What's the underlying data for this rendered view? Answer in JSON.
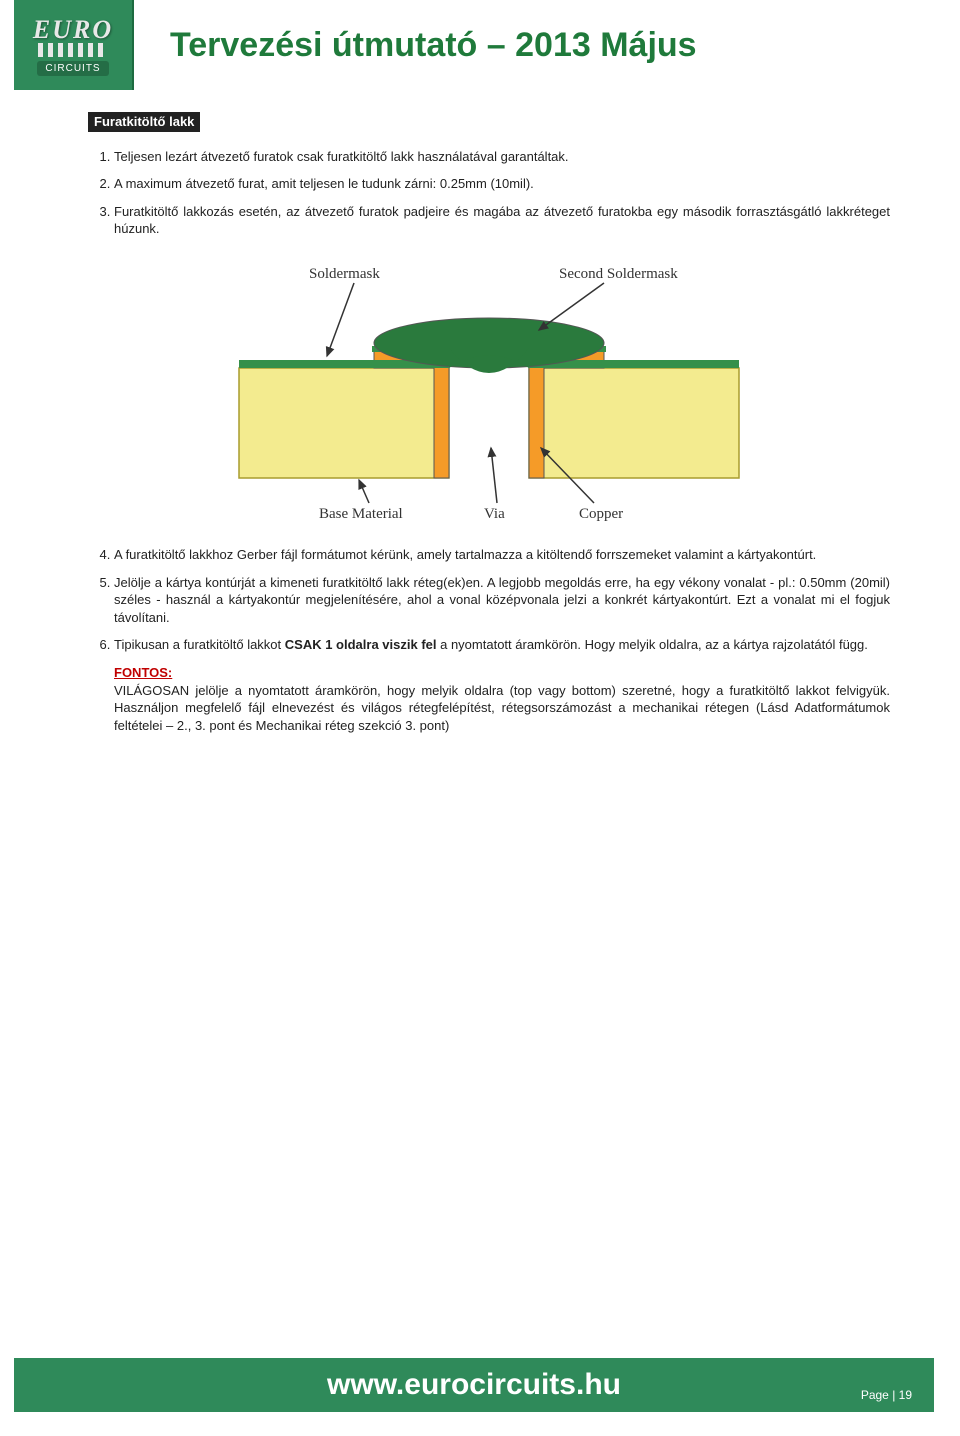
{
  "header": {
    "logo_top": "EURO",
    "logo_bottom": "CIRCUITS",
    "title": "Tervezési útmutató – 2013 Május"
  },
  "section": {
    "heading": "Furatkitöltő lakk",
    "items": [
      "Teljesen lezárt átvezető furatok csak furatkitöltő lakk használatával garantáltak.",
      "A maximum átvezető furat, amit teljesen le tudunk zárni: 0.25mm (10mil).",
      "Furatkitöltő lakkozás esetén, az átvezető furatok padjeire és magába az átvezető furatokba egy második forrasztásgátló lakkréteget húzunk."
    ],
    "items2": [
      "A furatkitöltő lakkhoz Gerber fájl formátumot kérünk, amely tartalmazza a kitöltendő forrszemeket valamint a kártyakontúrt.",
      "Jelölje a kártya kontúrját a kimeneti furatkitöltő lakk réteg(ek)en.\nA legjobb megoldás erre, ha egy vékony vonalat - pl.: 0.50mm (20mil) széles - használ a kártyakontúr megjelenítésére, ahol a vonal középvonala jelzi a konkrét kártyakontúrt. Ezt a vonalat mi el fogjuk távolítani.",
      "Tipikusan a furatkitöltő lakkot CSAK 1 oldalra viszik fel a nyomtatott áramkörön. Hogy melyik oldalra, az a kártya rajzolatától függ."
    ],
    "fontos_label": "FONTOS:",
    "fontos_text": "VILÁGOSAN jelölje a nyomtatott áramkörön, hogy melyik oldalra (top vagy bottom) szeretné, hogy a furatkitöltő lakkot felvigyük. Használjon megfelelő fájl elnevezést és világos rétegfelépítést, rétegsorszámozást a mechanikai rétegen (Lásd Adatformátumok feltételei – 2., 3. pont és Mechanikai réteg szekció 3. pont)"
  },
  "diagram": {
    "labels": {
      "soldermask": "Soldermask",
      "second_soldermask": "Second Soldermask",
      "base_material": "Base Material",
      "via": "Via",
      "copper": "Copper"
    },
    "colors": {
      "base": "#f3eb8f",
      "base_stroke": "#a89c2e",
      "copper": "#f59b28",
      "soldermask": "#35904a",
      "second_mask": "#2a7a3d",
      "arrow": "#333333",
      "text": "#333333",
      "outline": "#555555"
    }
  },
  "footer": {
    "url": "www.eurocircuits.hu",
    "page_prefix": "Page | ",
    "page_number": "19"
  }
}
